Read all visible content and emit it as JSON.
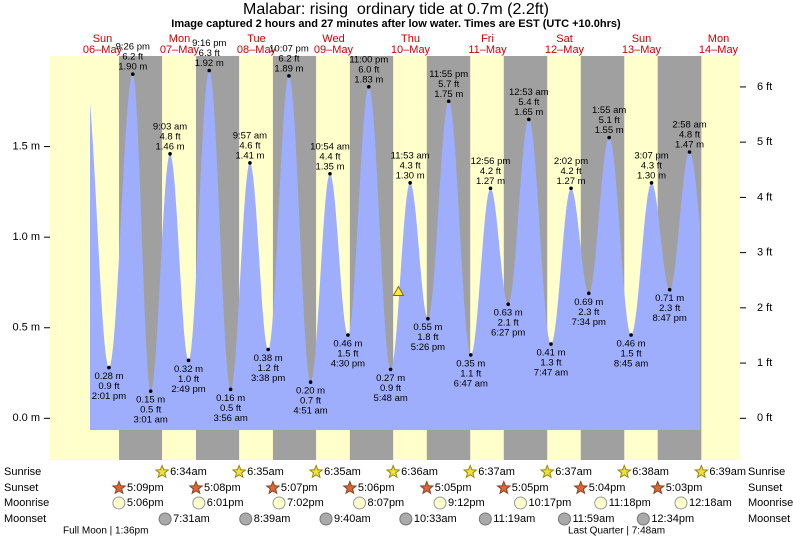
{
  "chart_data": {
    "type": "tide",
    "title": "Malabar: rising  ordinary tide at 0.7m (2.2ft)",
    "subtitle": "Image captured 2 hours and 27 minutes after low water. Times are EST (UTC +10.0hrs)",
    "current_level": 0.7,
    "days": [
      {
        "name": "Sun",
        "date": "06–May"
      },
      {
        "name": "Mon",
        "date": "07–May"
      },
      {
        "name": "Tue",
        "date": "08–May"
      },
      {
        "name": "Wed",
        "date": "09–May"
      },
      {
        "name": "Thu",
        "date": "10–May"
      },
      {
        "name": "Fri",
        "date": "11–May"
      },
      {
        "name": "Sat",
        "date": "12–May"
      },
      {
        "name": "Sun",
        "date": "13–May"
      },
      {
        "name": "Mon",
        "date": "14–May"
      }
    ],
    "tides": {
      "times": [
        "2:01 pm",
        "9:26 pm",
        "3:01 am",
        "9:03 am",
        "2:49 pm",
        "9:16 pm",
        "3:56 am",
        "9:57 am",
        "3:38 pm",
        "10:07 pm",
        "4:51 am",
        "10:54 am",
        "4:30 pm",
        "11:00 pm",
        "5:48 am",
        "11:53 am",
        "5:26 pm",
        "11:55 pm",
        "6:47 am",
        "12:56 pm",
        "6:27 pm",
        "12:53 am",
        "7:47 am",
        "2:02 pm",
        "7:34 pm",
        "1:55 am",
        "8:45 am",
        "3:07 pm",
        "8:47 pm",
        "2:58 am"
      ],
      "values": [
        0.28,
        1.9,
        0.15,
        1.46,
        0.32,
        1.92,
        0.16,
        1.41,
        0.38,
        1.89,
        0.2,
        1.35,
        0.46,
        1.83,
        0.27,
        1.3,
        0.55,
        1.75,
        0.35,
        1.27,
        0.63,
        1.65,
        0.41,
        1.27,
        0.69,
        1.55,
        0.46,
        1.3,
        0.71,
        1.47
      ],
      "value_labels": [
        "0.28 m",
        "1.90 m",
        "0.15 m",
        "1.46 m",
        "0.32 m",
        "1.92 m",
        "0.16 m",
        "1.41 m",
        "0.38 m",
        "1.89 m",
        "0.20 m",
        "1.35 m",
        "0.46 m",
        "1.83 m",
        "0.27 m",
        "1.30 m",
        "0.55 m",
        "1.75 m",
        "0.35 m",
        "1.27 m",
        "0.63 m",
        "1.65 m",
        "0.41 m",
        "1.27 m",
        "0.69 m",
        "1.55 m",
        "0.46 m",
        "1.30 m",
        "0.71 m",
        "1.47 m"
      ],
      "feet_labels": [
        "0.9 ft",
        "6.2 ft",
        "0.5 ft",
        "4.8 ft",
        "1.0 ft",
        "6.3 ft",
        "0.5 ft",
        "4.6 ft",
        "1.2 ft",
        "6.2 ft",
        "0.7 ft",
        "4.4 ft",
        "1.5 ft",
        "6.0 ft",
        "0.9 ft",
        "4.3 ft",
        "1.8 ft",
        "5.7 ft",
        "1.1 ft",
        "4.2 ft",
        "2.1 ft",
        "5.4 ft",
        "1.3 ft",
        "4.2 ft",
        "2.3 ft",
        "5.1 ft",
        "1.5 ft",
        "4.3 ft",
        "2.3 ft",
        "4.8 ft"
      ],
      "color": "#9eaefc"
    },
    "ylim": [
      -0.23,
      2.0
    ],
    "yticks": [
      {
        "value": 0,
        "label": "0.0 m"
      },
      {
        "value": 0.5,
        "label": "0.5 m"
      },
      {
        "value": 1.0,
        "label": "1.0 m"
      },
      {
        "value": 1.5,
        "label": "1.5 m"
      }
    ],
    "y2lim": [
      -0.755,
      6.56
    ],
    "y2ticks": [
      {
        "value": 0,
        "label": "0 ft"
      },
      {
        "value": 1,
        "label": "1 ft"
      },
      {
        "value": 2,
        "label": "2 ft"
      },
      {
        "value": 3,
        "label": "3 ft"
      },
      {
        "value": 4,
        "label": "4 ft"
      },
      {
        "value": 5,
        "label": "5 ft"
      },
      {
        "value": 6,
        "label": "6 ft"
      }
    ],
    "sun_moon": [
      {
        "label": "Sunrise",
        "times": [
          null,
          "6:34am",
          "6:35am",
          "6:35am",
          "6:36am",
          "6:37am",
          "6:37am",
          "6:38am",
          "6:39am"
        ]
      },
      {
        "label": "Sunset",
        "times": [
          "5:09pm",
          "5:08pm",
          "5:07pm",
          "5:06pm",
          "5:05pm",
          "5:05pm",
          "5:04pm",
          "5:03pm",
          null
        ]
      },
      {
        "label": "Moonrise",
        "times": [
          "5:06pm",
          "6:01pm",
          "7:02pm",
          "8:07pm",
          "9:12pm",
          "10:17pm",
          "11:18pm",
          null,
          "12:18am"
        ]
      },
      {
        "label": "Moonset",
        "times": [
          null,
          "7:31am",
          "8:39am",
          "9:40am",
          "10:33am",
          "11:19am",
          "11:59am",
          "12:34pm",
          null
        ]
      }
    ],
    "moon_phases": [
      "Full Moon | 1:36pm",
      "Last Quarter | 7:48am"
    ]
  }
}
